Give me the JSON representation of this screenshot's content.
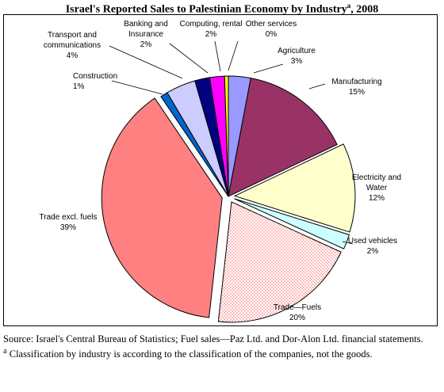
{
  "chart_data": {
    "type": "pie",
    "title": "Israel's Reported Sales to Palestinian Economy by Industry",
    "title_sup": "a",
    "title_year": ", 2008",
    "slices": [
      {
        "label": [
          "Agriculture",
          "3%"
        ],
        "value": 3,
        "color": "#9999ff",
        "pattern": "none",
        "explode": false
      },
      {
        "label": [
          "Manufacturing",
          "15%"
        ],
        "value": 15,
        "color": "#993366",
        "pattern": "none",
        "explode": false
      },
      {
        "label": [
          "Electricity and",
          "Water",
          "12%"
        ],
        "value": 12,
        "color": "#ffffcc",
        "pattern": "none",
        "explode": true
      },
      {
        "label": [
          "Used vehicles",
          "2%"
        ],
        "value": 2,
        "color": "#ccffff",
        "pattern": "none",
        "explode": true
      },
      {
        "label": [
          "Trade—Fuels",
          "20%"
        ],
        "value": 20,
        "color": "#ffffff",
        "pattern": "dots",
        "explode": true
      },
      {
        "label": [
          "Trade excl. fuels",
          "39%"
        ],
        "value": 39,
        "color": "#ff8080",
        "pattern": "none",
        "explode": true
      },
      {
        "label": [
          "Construction",
          "1%"
        ],
        "value": 1,
        "color": "#0066cc",
        "pattern": "none",
        "explode": false
      },
      {
        "label": [
          "Transport and",
          "communications",
          "4%"
        ],
        "value": 4,
        "color": "#ccccff",
        "pattern": "none",
        "explode": false
      },
      {
        "label": [
          "Banking and",
          "Insurance",
          "2%"
        ],
        "value": 2,
        "color": "#000080",
        "pattern": "none",
        "explode": false
      },
      {
        "label": [
          "Computing, rental",
          "2%"
        ],
        "value": 2,
        "color": "#ff00ff",
        "pattern": "none",
        "explode": false
      },
      {
        "label": [
          "Other services",
          "0%"
        ],
        "value": 0.5,
        "color": "#ffff00",
        "pattern": "none",
        "explode": false
      }
    ]
  },
  "source_text": "Source: Israel's Central Bureau of Statistics; Fuel sales—Paz Ltd. and Dor-Alon Ltd. financial statements.",
  "footnote_mark": "a",
  "footnote_text": " Classification by industry is according to the classification of the companies, not the goods."
}
